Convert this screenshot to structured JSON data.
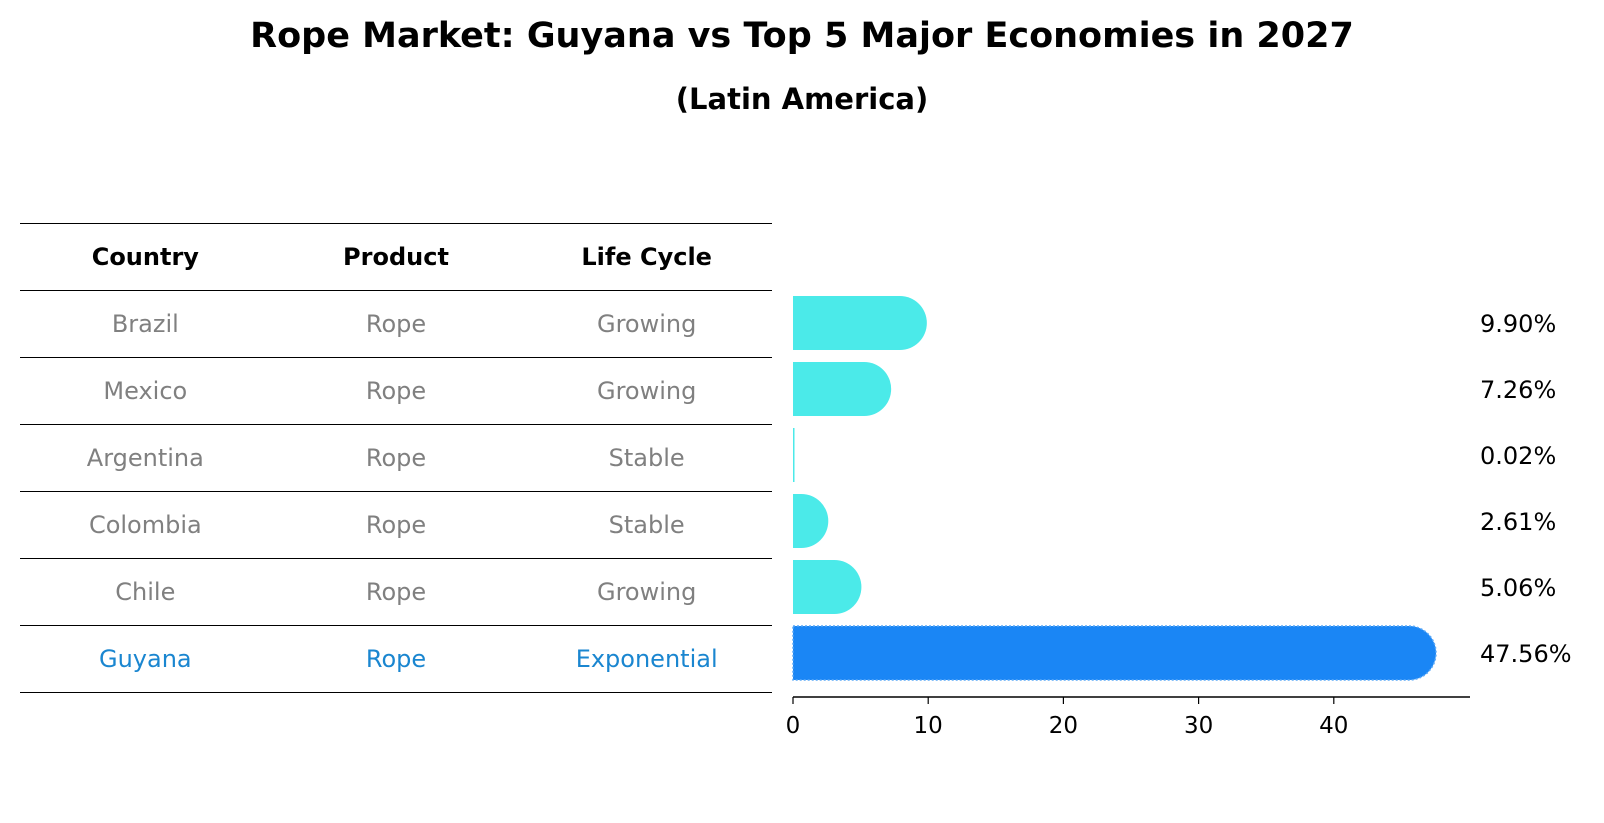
{
  "chart_data": {
    "type": "bar",
    "orientation": "horizontal",
    "title": "Rope Market: Guyana vs Top 5 Major Economies in 2027",
    "subtitle": "(Latin America)",
    "columns": [
      "Country",
      "Product",
      "Life Cycle"
    ],
    "rows": [
      {
        "country": "Brazil",
        "product": "Rope",
        "life_cycle": "Growing",
        "value": 9.9,
        "label": "9.90%",
        "highlight": false
      },
      {
        "country": "Mexico",
        "product": "Rope",
        "life_cycle": "Growing",
        "value": 7.26,
        "label": "7.26%",
        "highlight": false
      },
      {
        "country": "Argentina",
        "product": "Rope",
        "life_cycle": "Stable",
        "value": 0.02,
        "label": "0.02%",
        "highlight": false
      },
      {
        "country": "Colombia",
        "product": "Rope",
        "life_cycle": "Stable",
        "value": 2.61,
        "label": "2.61%",
        "highlight": false
      },
      {
        "country": "Chile",
        "product": "Rope",
        "life_cycle": "Growing",
        "value": 5.06,
        "label": "5.06%",
        "highlight": false
      },
      {
        "country": "Guyana",
        "product": "Rope",
        "life_cycle": "Exponential",
        "value": 47.56,
        "label": "47.56%",
        "highlight": true
      }
    ],
    "xticks": [
      "0",
      "10",
      "20",
      "30",
      "40"
    ],
    "xlim": [
      0,
      50
    ],
    "xlabel": "",
    "ylabel": "",
    "colors": {
      "normal": "#4beae9",
      "highlight": "#1a86f5",
      "highlight_text": "#1a86d0",
      "muted_text": "#808080"
    }
  }
}
